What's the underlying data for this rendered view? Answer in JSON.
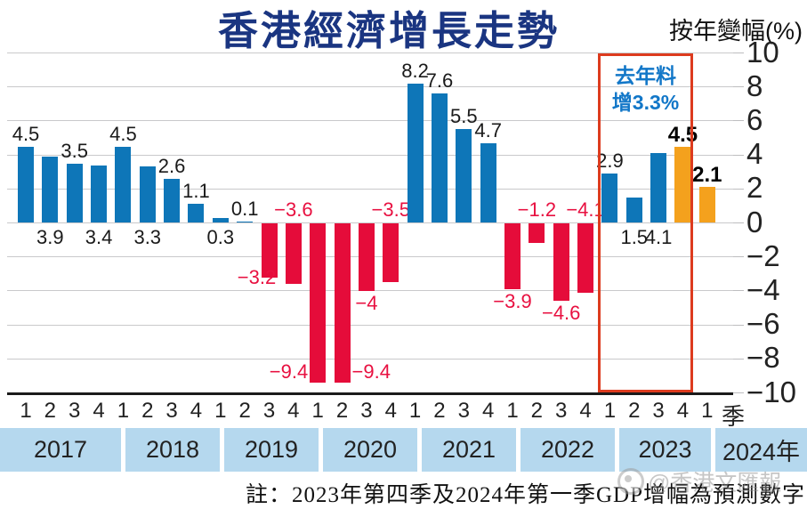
{
  "title": "香港經濟增長走勢",
  "y_axis_title": "按年變幅(%)",
  "axis_suffix": "季",
  "footnote": "註：2023年第四季及2024年第一季GDP增幅為預測數字",
  "watermark": "@香港文匯報",
  "highlight_annotation": {
    "line1": "去年料",
    "line2": "增3.3%"
  },
  "colors": {
    "title": "#1a3581",
    "positive": "#0e76b8",
    "negative": "#e50c3a",
    "forecast": "#f4a11d",
    "highlight_box": "#dd3b1e",
    "annotation_text": "#1277c8",
    "year_band": "#b5d8ee",
    "gridline": "#c9c9cb"
  },
  "chart_data": {
    "type": "bar",
    "title": "香港經濟增長走勢",
    "ylabel": "按年變幅(%)",
    "xlabel": "季",
    "ylim": [
      -10,
      10
    ],
    "yticks": [
      10,
      8,
      6,
      4,
      2,
      0,
      -2,
      -4,
      -6,
      -8,
      -10
    ],
    "grid": true,
    "legend_position": "none",
    "forecast_note": "2023年第四季及2024年第一季GDP增幅為預測數字",
    "years": [
      {
        "label": "2017",
        "values": [
          4.5,
          3.9,
          3.5,
          3.4
        ]
      },
      {
        "label": "2018",
        "values": [
          4.5,
          3.3,
          2.6,
          1.1
        ]
      },
      {
        "label": "2019",
        "values": [
          0.3,
          0.1,
          -3.2,
          -3.6
        ]
      },
      {
        "label": "2020",
        "values": [
          -9.4,
          -9.4,
          -4,
          -3.5
        ]
      },
      {
        "label": "2021",
        "values": [
          8.2,
          7.6,
          5.5,
          4.7
        ]
      },
      {
        "label": "2022",
        "values": [
          -3.9,
          -1.2,
          -4.6,
          -4.1
        ]
      },
      {
        "label": "2023",
        "values": [
          2.9,
          1.5,
          4.1,
          4.5
        ]
      },
      {
        "label": "2024年",
        "values": [
          2.1
        ]
      }
    ],
    "bars": [
      {
        "year": "2017",
        "quarter": "1",
        "value": 4.5,
        "label": "4.5",
        "color": "positive",
        "label_pos": "above",
        "bold": false
      },
      {
        "year": "2017",
        "quarter": "2",
        "value": 3.9,
        "label": "3.9",
        "color": "positive",
        "label_pos": "below-axis",
        "bold": false
      },
      {
        "year": "2017",
        "quarter": "3",
        "value": 3.5,
        "label": "3.5",
        "color": "positive",
        "label_pos": "above",
        "bold": false
      },
      {
        "year": "2017",
        "quarter": "4",
        "value": 3.4,
        "label": "3.4",
        "color": "positive",
        "label_pos": "below-axis",
        "bold": false
      },
      {
        "year": "2018",
        "quarter": "1",
        "value": 4.5,
        "label": "4.5",
        "color": "positive",
        "label_pos": "above",
        "bold": false
      },
      {
        "year": "2018",
        "quarter": "2",
        "value": 3.3,
        "label": "3.3",
        "color": "positive",
        "label_pos": "below-axis",
        "bold": false
      },
      {
        "year": "2018",
        "quarter": "3",
        "value": 2.6,
        "label": "2.6",
        "color": "positive",
        "label_pos": "above",
        "bold": false
      },
      {
        "year": "2018",
        "quarter": "4",
        "value": 1.1,
        "label": "1.1",
        "color": "positive",
        "label_pos": "above",
        "bold": false
      },
      {
        "year": "2019",
        "quarter": "1",
        "value": 0.3,
        "label": "0.3",
        "color": "positive",
        "label_pos": "below-axis",
        "bold": false
      },
      {
        "year": "2019",
        "quarter": "2",
        "value": 0.1,
        "label": "0.1",
        "color": "positive",
        "label_pos": "above",
        "bold": false
      },
      {
        "year": "2019",
        "quarter": "3",
        "value": -3.2,
        "label": "-3.2",
        "color": "negative",
        "label_pos": "below-bar-left",
        "bold": false
      },
      {
        "year": "2019",
        "quarter": "4",
        "value": -3.6,
        "label": "-3.6",
        "color": "negative",
        "label_pos": "above-axis",
        "bold": false
      },
      {
        "year": "2020",
        "quarter": "1",
        "value": -9.4,
        "label": "-9.4",
        "color": "negative",
        "label_pos": "side-left",
        "bold": false
      },
      {
        "year": "2020",
        "quarter": "2",
        "value": -9.4,
        "label": "-9.4",
        "color": "negative",
        "label_pos": "side-right",
        "bold": false
      },
      {
        "year": "2020",
        "quarter": "3",
        "value": -4,
        "label": "-4",
        "color": "negative",
        "label_pos": "below-bar",
        "bold": false
      },
      {
        "year": "2020",
        "quarter": "4",
        "value": -3.5,
        "label": "-3.5",
        "color": "negative",
        "label_pos": "above-axis",
        "bold": false
      },
      {
        "year": "2021",
        "quarter": "1",
        "value": 8.2,
        "label": "8.2",
        "color": "positive",
        "label_pos": "above",
        "bold": false
      },
      {
        "year": "2021",
        "quarter": "2",
        "value": 7.6,
        "label": "7.6",
        "color": "positive",
        "label_pos": "above",
        "bold": false
      },
      {
        "year": "2021",
        "quarter": "3",
        "value": 5.5,
        "label": "5.5",
        "color": "positive",
        "label_pos": "above",
        "bold": false
      },
      {
        "year": "2021",
        "quarter": "4",
        "value": 4.7,
        "label": "4.7",
        "color": "positive",
        "label_pos": "above",
        "bold": false
      },
      {
        "year": "2022",
        "quarter": "1",
        "value": -3.9,
        "label": "-3.9",
        "color": "negative",
        "label_pos": "below-bar",
        "bold": false
      },
      {
        "year": "2022",
        "quarter": "2",
        "value": -1.2,
        "label": "-1.2",
        "color": "negative",
        "label_pos": "above-axis",
        "bold": false
      },
      {
        "year": "2022",
        "quarter": "3",
        "value": -4.6,
        "label": "-4.6",
        "color": "negative",
        "label_pos": "below-bar",
        "bold": false
      },
      {
        "year": "2022",
        "quarter": "4",
        "value": -4.1,
        "label": "-4.1",
        "color": "negative",
        "label_pos": "above-axis",
        "bold": false
      },
      {
        "year": "2023",
        "quarter": "1",
        "value": 2.9,
        "label": "2.9",
        "color": "positive",
        "label_pos": "above",
        "bold": false
      },
      {
        "year": "2023",
        "quarter": "2",
        "value": 1.5,
        "label": "1.5",
        "color": "positive",
        "label_pos": "below-axis",
        "bold": false
      },
      {
        "year": "2023",
        "quarter": "3",
        "value": 4.1,
        "label": "4.1",
        "color": "positive",
        "label_pos": "below-axis",
        "bold": false
      },
      {
        "year": "2023",
        "quarter": "4",
        "value": 4.5,
        "label": "4.5",
        "color": "forecast",
        "label_pos": "above",
        "bold": true
      },
      {
        "year": "2024年",
        "quarter": "1",
        "value": 2.1,
        "label": "2.1",
        "color": "forecast",
        "label_pos": "above",
        "bold": true
      }
    ]
  }
}
